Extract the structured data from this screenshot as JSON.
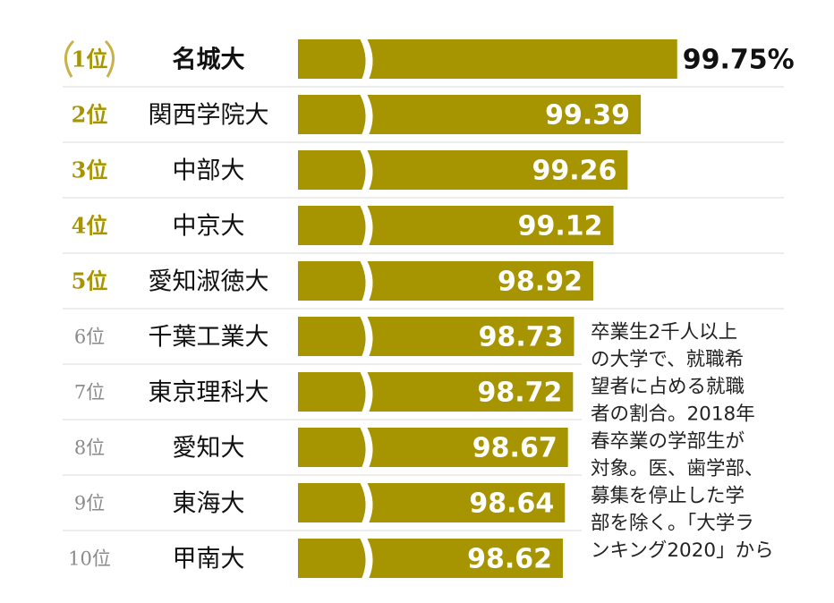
{
  "chart_data": {
    "type": "bar",
    "orientation": "horizontal",
    "ranks": [
      "1位",
      "2位",
      "3位",
      "4位",
      "5位",
      "6位",
      "7位",
      "8位",
      "9位",
      "10位"
    ],
    "rank_colors": [
      "#a69500",
      "#a69500",
      "#a69500",
      "#a69500",
      "#a69500",
      "#8a8a8a",
      "#8a8a8a",
      "#8a8a8a",
      "#8a8a8a",
      "#8a8a8a"
    ],
    "categories": [
      "名城大",
      "関西学院大",
      "中部大",
      "中京大",
      "愛知淑徳大",
      "千葉工業大",
      "東京理科大",
      "愛知大",
      "東海大",
      "甲南大"
    ],
    "values": [
      99.75,
      99.39,
      99.26,
      99.12,
      98.92,
      98.73,
      98.72,
      98.67,
      98.64,
      98.62
    ],
    "value_labels": [
      "99.75%",
      "99.39",
      "99.26",
      "99.12",
      "98.92",
      "98.73",
      "98.72",
      "98.67",
      "98.64",
      "98.62"
    ],
    "color": "#a69500",
    "xlim": [
      96,
      100
    ],
    "axis_break": true,
    "note_lines": [
      "卒業生2千人以上",
      "の大学で、就職希",
      "望者に占める就職",
      "者の割合。2018年",
      "春卒業の学部生が",
      "対象。医、歯学部、",
      "募集を停止した学",
      "部を除く。「大学ラ",
      "ンキング2020」から"
    ]
  }
}
